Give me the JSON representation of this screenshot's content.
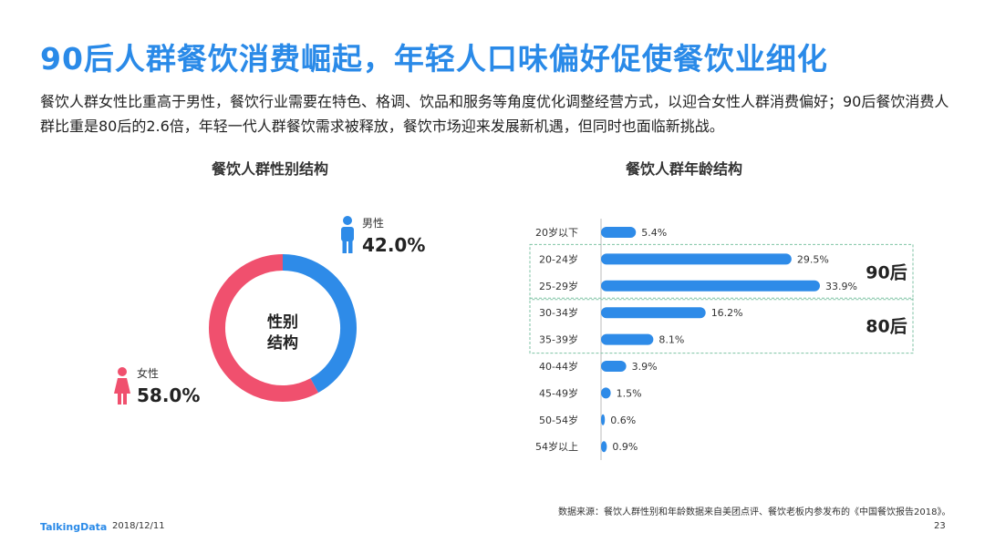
{
  "header": {
    "title": "90后人群餐饮消费崛起，年轻人口味偏好促使餐饮业细化",
    "description": "餐饮人群女性比重高于男性，餐饮行业需要在特色、格调、饮品和服务等角度优化调整经营方式，以迎合女性人群消费偏好；90后餐饮消费人群比重是80后的2.6倍，年轻一代人群餐饮需求被释放，餐饮市场迎来发展新机遇，但同时也面临新挑战。"
  },
  "chart_data": [
    {
      "type": "pie",
      "title": "餐饮人群性别结构",
      "center_label_line1": "性别",
      "center_label_line2": "结构",
      "slices": [
        {
          "name": "男性",
          "value": 42.0,
          "label": "42.0%",
          "color": "#2e8be8",
          "icon": "male-person-icon"
        },
        {
          "name": "女性",
          "value": 58.0,
          "label": "58.0%",
          "color": "#f0506e",
          "icon": "female-person-icon"
        }
      ]
    },
    {
      "type": "bar",
      "orientation": "horizontal",
      "title": "餐饮人群年龄结构",
      "categories": [
        "20岁以下",
        "20-24岁",
        "25-29岁",
        "30-34岁",
        "35-39岁",
        "40-44岁",
        "45-49岁",
        "50-54岁",
        "54岁以上"
      ],
      "values": [
        5.4,
        29.5,
        33.9,
        16.2,
        8.1,
        3.9,
        1.5,
        0.6,
        0.9
      ],
      "value_labels": [
        "5.4%",
        "29.5%",
        "33.9%",
        "16.2%",
        "8.1%",
        "3.9%",
        "1.5%",
        "0.6%",
        "0.9%"
      ],
      "bar_color": "#2e8be8",
      "groups": [
        {
          "label": "90后",
          "categories": [
            "20-24岁",
            "25-29岁"
          ]
        },
        {
          "label": "80后",
          "categories": [
            "30-34岁",
            "35-39岁"
          ]
        }
      ]
    }
  ],
  "footer": {
    "source": "数据来源：餐饮人群性别和年龄数据来自美团点评、餐饮老板内参发布的《中国餐饮报告2018》。",
    "logo": "TalkingData",
    "date": "2018/12/11",
    "page": "23"
  }
}
